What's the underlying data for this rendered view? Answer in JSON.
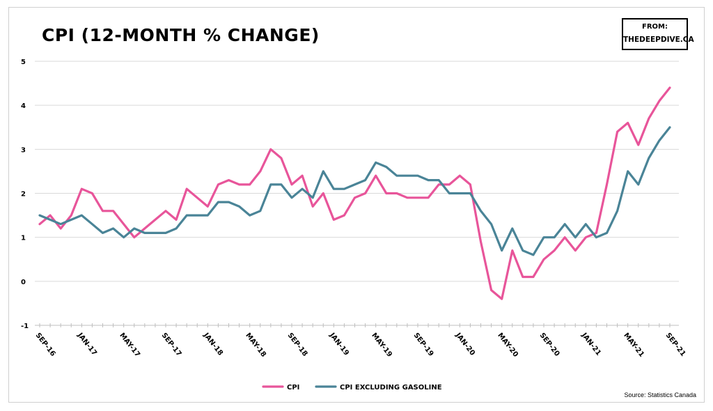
{
  "header": {
    "title": "CPI (12-MONTH % CHANGE)",
    "badge_from": "FROM:",
    "badge_site": "THEDEEPDIVE.CA"
  },
  "source": "Source: Statistics Canada",
  "colors": {
    "cpi": "#e8559a",
    "cpi_ex_gas": "#4a8497",
    "grid": "#d9d9d9"
  },
  "chart_data": {
    "type": "line",
    "title": "CPI (12-MONTH % CHANGE)",
    "ylim": [
      -1,
      5
    ],
    "yticks": [
      "-1",
      "0",
      "1",
      "2",
      "3",
      "4",
      "5"
    ],
    "xtick_labels": [
      "SEP-16",
      "JAN-17",
      "MAY-17",
      "SEP-17",
      "JAN-18",
      "MAY-18",
      "SEP-18",
      "JAN-19",
      "MAY-19",
      "SEP-19",
      "JAN-20",
      "MAY-20",
      "SEP-20",
      "JAN-21",
      "MAY-21",
      "SEP-21"
    ],
    "x": [
      "Sep-16",
      "Oct-16",
      "Nov-16",
      "Dec-16",
      "Jan-17",
      "Feb-17",
      "Mar-17",
      "Apr-17",
      "May-17",
      "Jun-17",
      "Jul-17",
      "Aug-17",
      "Sep-17",
      "Oct-17",
      "Nov-17",
      "Dec-17",
      "Jan-18",
      "Feb-18",
      "Mar-18",
      "Apr-18",
      "May-18",
      "Jun-18",
      "Jul-18",
      "Aug-18",
      "Sep-18",
      "Oct-18",
      "Nov-18",
      "Dec-18",
      "Jan-19",
      "Feb-19",
      "Mar-19",
      "Apr-19",
      "May-19",
      "Jun-19",
      "Jul-19",
      "Aug-19",
      "Sep-19",
      "Oct-19",
      "Nov-19",
      "Dec-19",
      "Jan-20",
      "Feb-20",
      "Mar-20",
      "Apr-20",
      "May-20",
      "Jun-20",
      "Jul-20",
      "Aug-20",
      "Sep-20",
      "Oct-20",
      "Nov-20",
      "Dec-20",
      "Jan-21",
      "Feb-21",
      "Mar-21",
      "Apr-21",
      "May-21",
      "Jun-21",
      "Jul-21",
      "Aug-21",
      "Sep-21"
    ],
    "series": [
      {
        "name": "CPI",
        "values": [
          1.3,
          1.5,
          1.2,
          1.5,
          2.1,
          2.0,
          1.6,
          1.6,
          1.3,
          1.0,
          1.2,
          1.4,
          1.6,
          1.4,
          2.1,
          1.9,
          1.7,
          2.2,
          2.3,
          2.2,
          2.2,
          2.5,
          3.0,
          2.8,
          2.2,
          2.4,
          1.7,
          2.0,
          1.4,
          1.5,
          1.9,
          2.0,
          2.4,
          2.0,
          2.0,
          1.9,
          1.9,
          1.9,
          2.2,
          2.2,
          2.4,
          2.2,
          0.9,
          -0.2,
          -0.4,
          0.7,
          0.1,
          0.1,
          0.5,
          0.7,
          1.0,
          0.7,
          1.0,
          1.1,
          2.2,
          3.4,
          3.6,
          3.1,
          3.7,
          4.1,
          4.4
        ]
      },
      {
        "name": "CPI EXCLUDING GASOLINE",
        "values": [
          1.5,
          1.4,
          1.3,
          1.4,
          1.5,
          1.3,
          1.1,
          1.2,
          1.0,
          1.2,
          1.1,
          1.1,
          1.1,
          1.2,
          1.5,
          1.5,
          1.5,
          1.8,
          1.8,
          1.7,
          1.5,
          1.6,
          2.2,
          2.2,
          1.9,
          2.1,
          1.9,
          2.5,
          2.1,
          2.1,
          2.2,
          2.3,
          2.7,
          2.6,
          2.4,
          2.4,
          2.4,
          2.3,
          2.3,
          2.0,
          2.0,
          2.0,
          1.6,
          1.3,
          0.7,
          1.2,
          0.7,
          0.6,
          1.0,
          1.0,
          1.3,
          1.0,
          1.3,
          1.0,
          1.1,
          1.6,
          2.5,
          2.2,
          2.8,
          3.2,
          3.5
        ]
      }
    ],
    "legend_placement": "bottom-center",
    "grid": true
  }
}
